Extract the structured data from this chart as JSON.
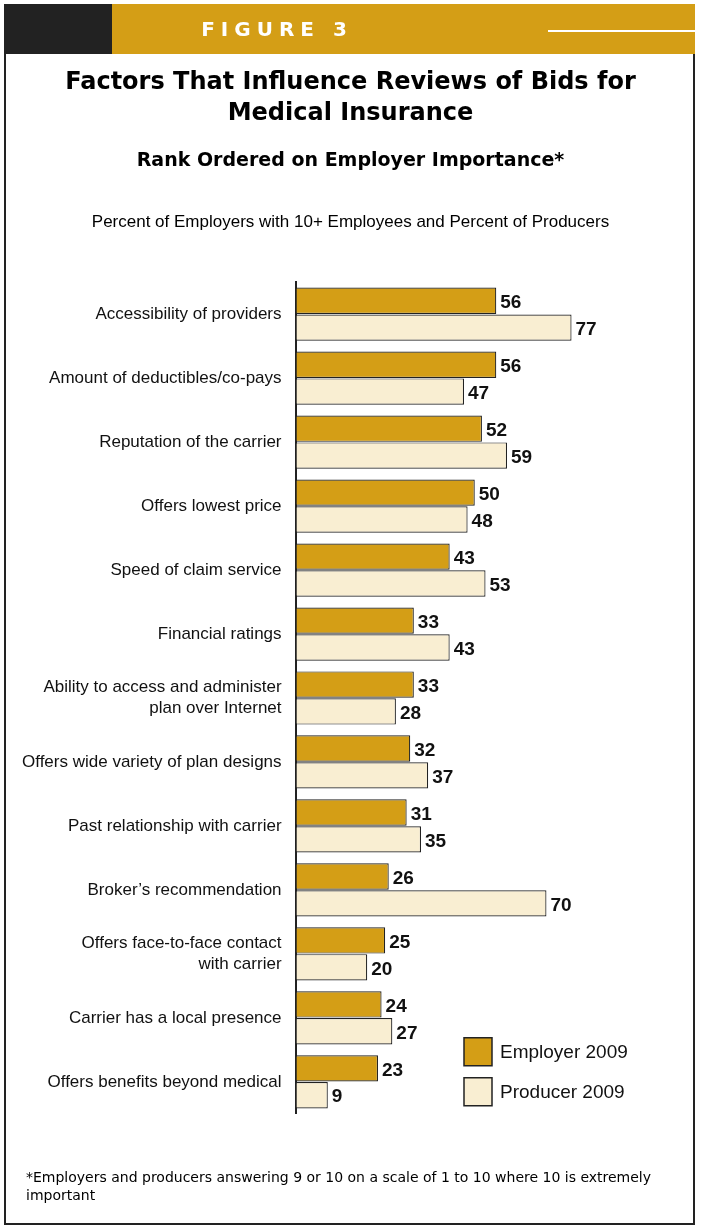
{
  "chart_data": {
    "type": "bar",
    "orientation": "horizontal",
    "title": "Factors That Influence Reviews of Bids for Medical Insurance",
    "subtitle": "Rank Ordered on Employer Importance*",
    "annotations": [
      "FIGURE 3",
      "Percent of Employers with 10+ Employees and Percent of Producers",
      "*Employers and producers answering 9 or 10 on a scale of 1 to 10 where 10 is extremely important"
    ],
    "categories": [
      "Accessibility of providers",
      "Amount of deductibles/co-pays",
      "Reputation of the carrier",
      "Offers lowest price",
      "Speed of claim service",
      "Financial ratings",
      "Ability to access and administer\nplan over Internet",
      "Offers wide variety of plan designs",
      "Past relationship with carrier",
      "Broker’s recommendation",
      "Offers face-to-face contact\nwith carrier",
      "Carrier has a local presence",
      "Offers benefits beyond medical"
    ],
    "series": [
      {
        "name": "Employer 2009",
        "color": "#d49e16",
        "values": [
          56,
          56,
          52,
          50,
          43,
          33,
          33,
          32,
          31,
          26,
          25,
          24,
          23
        ]
      },
      {
        "name": "Producer 2009",
        "color": "#f9eed2",
        "values": [
          77,
          47,
          59,
          48,
          53,
          43,
          28,
          37,
          35,
          70,
          20,
          27,
          9
        ]
      }
    ],
    "tick_labels": "y",
    "data_labels": true,
    "legend": "bottom right"
  }
}
